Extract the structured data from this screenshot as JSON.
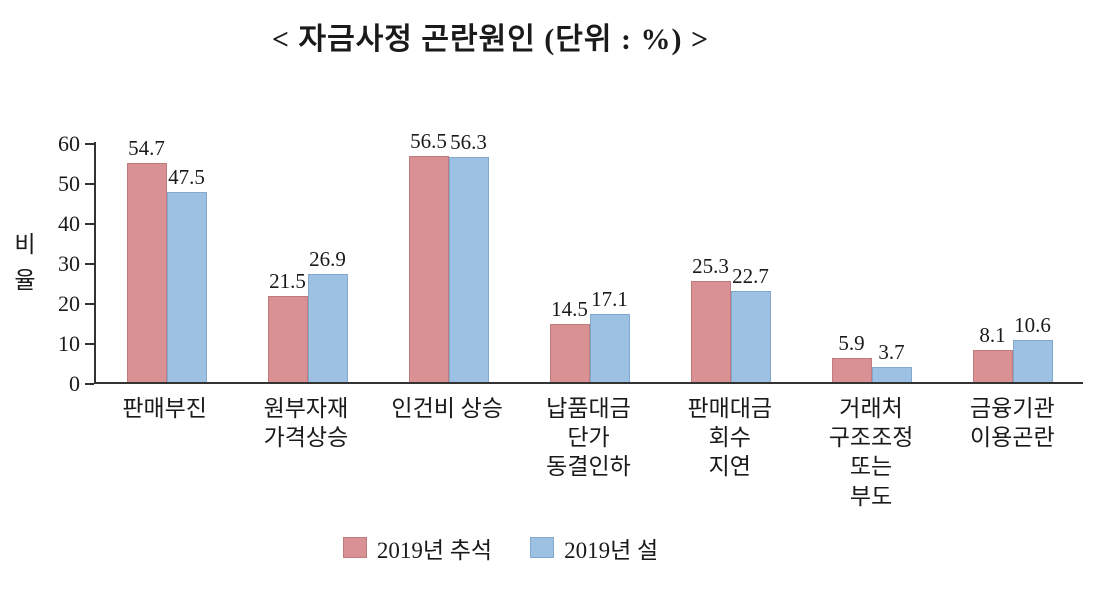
{
  "chart_data": {
    "type": "bar",
    "title": "< 자금사정 곤란원인 (단위 : %) >",
    "ylabel": "비율",
    "xlabel": "",
    "ylim": [
      0,
      60
    ],
    "yticks": [
      0,
      10,
      20,
      30,
      40,
      50,
      60
    ],
    "grid": false,
    "legend_position": "bottom",
    "categories": [
      "판매부진",
      "원부자재 가격상승",
      "인건비 상승",
      "납품대금 단가 동결인하",
      "판매대금 회수 지연",
      "거래처 구조조정 또는 부도",
      "금융기관 이용곤란"
    ],
    "category_lines": [
      [
        "판매부진"
      ],
      [
        "원부자재",
        "가격상승"
      ],
      [
        "인건비 상승"
      ],
      [
        "납품대금",
        "단가",
        "동결인하"
      ],
      [
        "판매대금",
        "회수",
        "지연"
      ],
      [
        "거래처",
        "구조조정",
        "또는",
        "부도"
      ],
      [
        "금융기관",
        "이용곤란"
      ]
    ],
    "series": [
      {
        "name": "2019년 추석",
        "color": "#d99194",
        "border": "#c07b7e",
        "values": [
          54.7,
          21.5,
          56.5,
          14.5,
          25.3,
          5.9,
          8.1
        ]
      },
      {
        "name": "2019년 설",
        "color": "#9cc1e2",
        "border": "#82a9cc",
        "values": [
          47.5,
          26.9,
          56.3,
          17.1,
          22.7,
          3.7,
          10.6
        ]
      }
    ],
    "axis_color": "#333333"
  }
}
